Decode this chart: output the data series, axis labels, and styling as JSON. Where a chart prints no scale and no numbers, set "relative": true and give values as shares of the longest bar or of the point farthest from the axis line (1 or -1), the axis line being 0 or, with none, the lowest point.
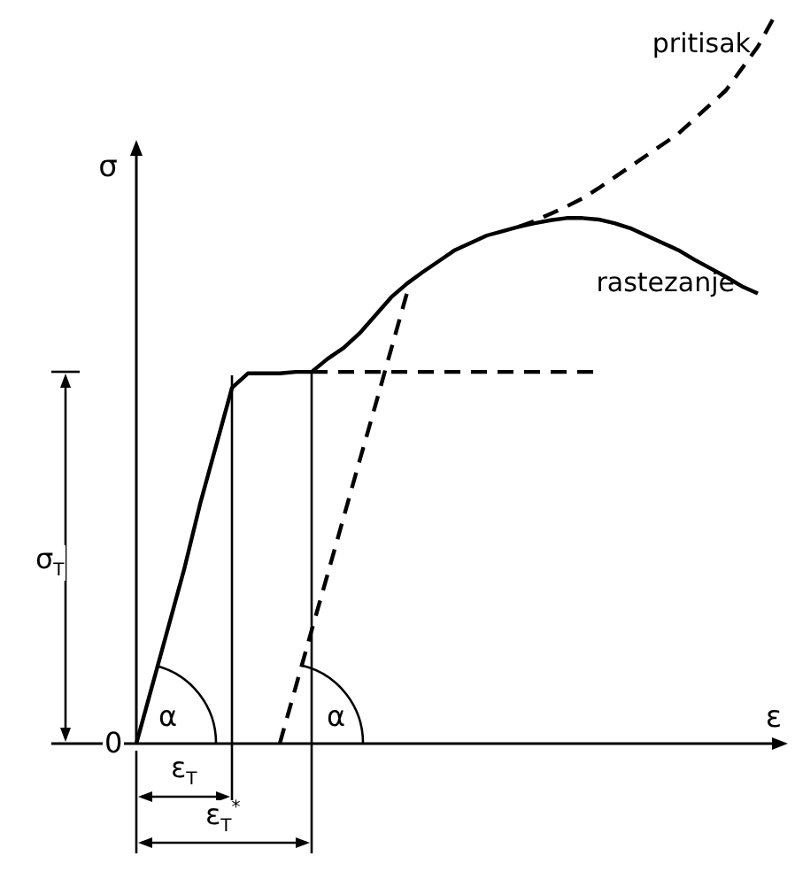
{
  "chart_data": {
    "type": "line",
    "relative": true,
    "xlabel": "ε",
    "ylabel": "σ",
    "legend": false,
    "grid": false,
    "categories": [
      null,
      null,
      null,
      null,
      null,
      null,
      null,
      null,
      null,
      null,
      null,
      null,
      null,
      null,
      null,
      null,
      null,
      null,
      null,
      null,
      null,
      null,
      null,
      null,
      null,
      null,
      null,
      null,
      null,
      null,
      null,
      null,
      null,
      null,
      null,
      null,
      null,
      null,
      null,
      null,
      null
    ],
    "series": [
      {
        "name": "rastezanje",
        "color": "#000000",
        "line_style": "solid",
        "values": [
          0,
          0.08,
          0.16,
          0.24,
          0.33,
          0.41,
          0.49,
          0.51,
          0.51,
          0.51,
          0.512,
          0.512,
          0.53,
          0.545,
          0.565,
          0.59,
          0.615,
          0.634,
          0.65,
          0.665,
          0.68,
          0.69,
          0.7,
          0.706,
          0.712,
          0.717,
          0.721,
          0.724,
          0.724,
          0.722,
          0.717,
          0.71,
          0.7,
          0.69,
          0.68,
          0.667,
          0.655,
          0.643,
          0.63,
          0.62,
          null
        ]
      },
      {
        "name": "pritisak",
        "color": "#000000",
        "line_style": "dashed",
        "values": [
          null,
          null,
          null,
          null,
          null,
          null,
          null,
          null,
          null,
          null,
          null,
          null,
          null,
          null,
          null,
          null,
          null,
          null,
          null,
          null,
          null,
          null,
          null,
          null,
          0.712,
          0.72,
          0.73,
          0.74,
          0.751,
          0.765,
          0.78,
          0.795,
          0.81,
          0.825,
          0.84,
          0.86,
          0.88,
          0.9,
          0.93,
          0.96,
          1
        ]
      },
      {
        "color": "#000000",
        "line_style": "dashed",
        "values": [
          null,
          null,
          null,
          null,
          null,
          null,
          null,
          null,
          null,
          null,
          null,
          0.512,
          0.512,
          0.512,
          0.512,
          0.512,
          0.512,
          0.512,
          0.512,
          0.512,
          0.512,
          0.512,
          0.512,
          0.512,
          0.512,
          0.512,
          0.512,
          0.512,
          0.512,
          0.512,
          null,
          null,
          null,
          null,
          null,
          null,
          null,
          null,
          null,
          null,
          null
        ]
      },
      {
        "color": "#000000",
        "line_style": "dashed",
        "values": [
          null,
          null,
          null,
          null,
          null,
          null,
          null,
          null,
          null,
          0,
          0.078,
          0.156,
          0.233,
          0.311,
          0.389,
          0.466,
          0.544,
          0.622,
          null,
          null,
          null,
          null,
          null,
          null,
          null,
          null,
          null,
          null,
          null,
          null,
          null,
          null,
          null,
          null,
          null,
          null,
          null,
          null,
          null,
          null,
          null
        ]
      }
    ],
    "annotations": [
      "0",
      "α",
      "α",
      "ε$_{T}$",
      "ε$_{T}$$^{*}$",
      "σ$_{T}$"
    ]
  }
}
